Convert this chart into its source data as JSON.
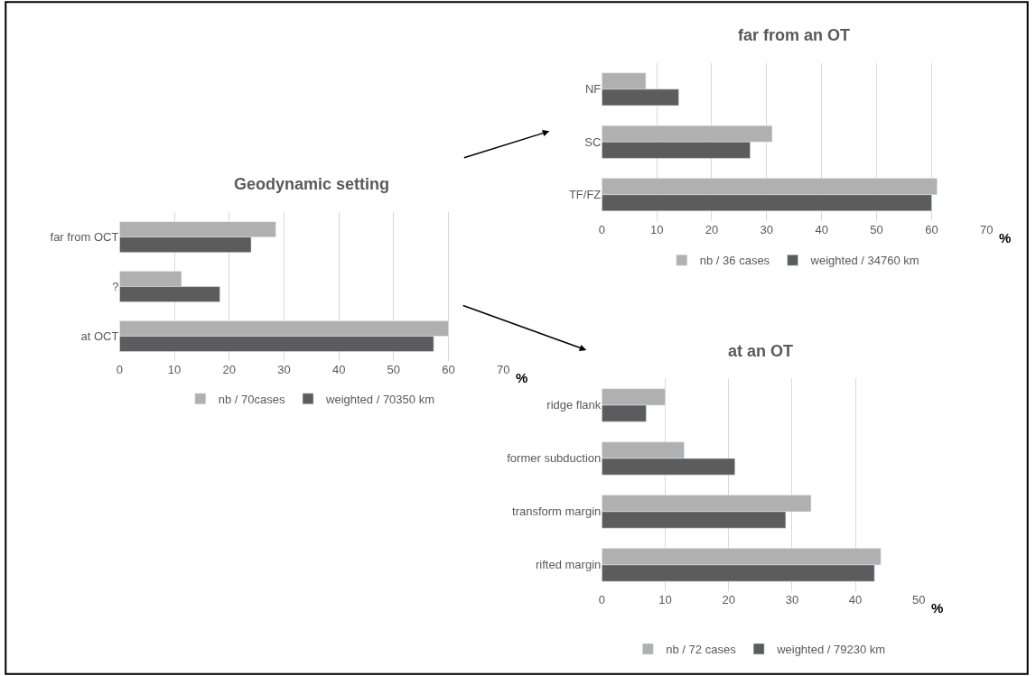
{
  "chart_data": [
    {
      "type": "bar",
      "orientation": "horizontal",
      "title": "Geodynamic setting",
      "xlabel": "%",
      "categories": [
        "far from OCT",
        "?",
        "at OCT"
      ],
      "series": [
        {
          "name": "nb / 70cases",
          "color": "#b0b0b0",
          "values": [
            28.5,
            11.3,
            60
          ]
        },
        {
          "name": "weighted / 70350 km",
          "color": "#5c5c5c",
          "values": [
            24,
            18.3,
            57.3
          ]
        }
      ],
      "xlim": [
        0,
        70
      ],
      "xticks": [
        0,
        10,
        20,
        30,
        40,
        50,
        60,
        70
      ],
      "grid": "x",
      "legend": "bottom"
    },
    {
      "type": "bar",
      "orientation": "horizontal",
      "title": "far from an OT",
      "xlabel": "%",
      "categories": [
        "NF",
        "SC",
        "TF/FZ"
      ],
      "series": [
        {
          "name": "nb / 36 cases",
          "color": "#b0b0b0",
          "values": [
            8,
            31,
            61
          ]
        },
        {
          "name": "weighted / 34760 km",
          "color": "#5c5c5c",
          "values": [
            14,
            27,
            60
          ]
        }
      ],
      "xlim": [
        0,
        70
      ],
      "xticks": [
        0,
        10,
        20,
        30,
        40,
        50,
        60,
        70
      ],
      "grid": "x",
      "legend": "bottom"
    },
    {
      "type": "bar",
      "orientation": "horizontal",
      "title": "at an OT",
      "xlabel": "%",
      "categories": [
        "ridge flank",
        "former subduction",
        "transform margin",
        "rifted margin"
      ],
      "series": [
        {
          "name": "nb / 72 cases",
          "color": "#b0b0b0",
          "values": [
            10,
            13,
            33,
            44
          ]
        },
        {
          "name": "weighted / 79230 km",
          "color": "#5c5c5c",
          "values": [
            7,
            21,
            29,
            43
          ]
        }
      ],
      "xlim": [
        0,
        50
      ],
      "xticks": [
        0,
        10,
        20,
        30,
        40,
        50
      ],
      "grid": "x",
      "legend": "bottom"
    }
  ]
}
